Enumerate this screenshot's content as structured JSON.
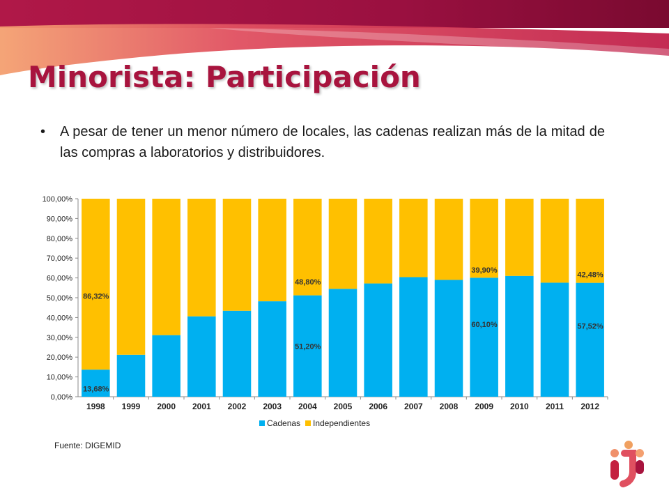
{
  "title": "Minorista: Participación",
  "bullet": "A pesar de tener un menor número de locales, las cadenas realizan más de la mitad de las compras a laboratorios y distribuidores.",
  "source": "Fuente: DIGEMID",
  "colors": {
    "title": "#a8143e",
    "cadenas": "#00b0f0",
    "independientes": "#ffc000",
    "banner_dark": "#8e0d38",
    "banner_mid": "#c4203f",
    "banner_light": "#f0906a"
  },
  "chart_data": {
    "type": "bar",
    "stacked": true,
    "categories": [
      "1998",
      "1999",
      "2000",
      "2001",
      "2002",
      "2003",
      "2004",
      "2005",
      "2006",
      "2007",
      "2008",
      "2009",
      "2010",
      "2011",
      "2012"
    ],
    "series": [
      {
        "name": "Cadenas",
        "color": "#00b0f0",
        "values": [
          13.68,
          21.2,
          31.1,
          40.6,
          43.4,
          48.2,
          51.2,
          54.5,
          57.2,
          60.4,
          59.0,
          60.1,
          61.0,
          57.6,
          57.52
        ]
      },
      {
        "name": "Independientes",
        "color": "#ffc000",
        "values": [
          86.32,
          78.8,
          68.9,
          59.4,
          56.6,
          51.8,
          48.8,
          45.5,
          42.8,
          39.6,
          41.0,
          39.9,
          39.0,
          42.4,
          42.48
        ]
      }
    ],
    "data_labels": [
      {
        "category": "1998",
        "series": "Cadenas",
        "text": "13,68%"
      },
      {
        "category": "1998",
        "series": "Independientes",
        "text": "86,32%"
      },
      {
        "category": "2004",
        "series": "Cadenas",
        "text": "51,20%"
      },
      {
        "category": "2004",
        "series": "Independientes",
        "text": "48,80%"
      },
      {
        "category": "2009",
        "series": "Cadenas",
        "text": "60,10%"
      },
      {
        "category": "2009",
        "series": "Independientes",
        "text": "39,90%"
      },
      {
        "category": "2012",
        "series": "Cadenas",
        "text": "57,52%"
      },
      {
        "category": "2012",
        "series": "Independientes",
        "text": "42,48%"
      }
    ],
    "ylim": [
      0,
      100
    ],
    "yticks": [
      "0,00%",
      "10,00%",
      "20,00%",
      "30,00%",
      "40,00%",
      "50,00%",
      "60,00%",
      "70,00%",
      "80,00%",
      "90,00%",
      "100,00%"
    ],
    "legend_position": "bottom",
    "grid": false
  }
}
